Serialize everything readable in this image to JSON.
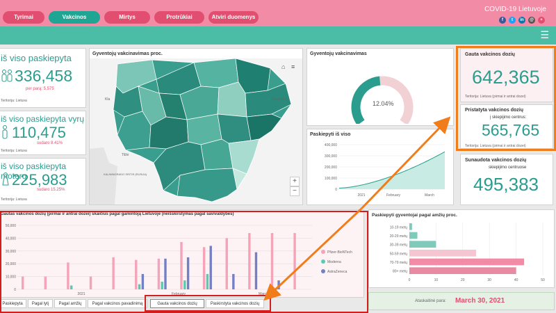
{
  "nav": {
    "items": [
      "Tyrimai",
      "Vakcinos",
      "Mirtys",
      "Protrūkiai",
      "Atviri duomenys"
    ],
    "active": "Vakcinos",
    "app_title": "COVID-19 Lietuvoje"
  },
  "colors": {
    "pink": "#f28ba6",
    "teal": "#2a9d8f",
    "green_bar": "#4bbda7",
    "red": "#d41e1e",
    "orange": "#f07d1a"
  },
  "kpi": {
    "total": {
      "title": "iš viso paskiepyta",
      "value": "336,458",
      "sub": "per parą: 5,575",
      "foot": "Teritorija: Lietuva"
    },
    "men": {
      "title": "iš viso paskiepyta vyrų",
      "value": "110,475",
      "sub": "sudaro 8.41%",
      "foot": "Teritorija: Lietuva"
    },
    "women": {
      "title": "iš viso paskiepyta moterų",
      "value": "225,983",
      "sub": "sudaro 15.25%",
      "foot": "Teritorija: Lietuva"
    }
  },
  "map": {
    "title": "Gyventojų vakcinavimas proc.",
    "labels": [
      "Daugpilis",
      "Tilžė",
      "Kla",
      "Šiauliai",
      "KALININGRADO SRITIS (RUSIJA)"
    ]
  },
  "gauge": {
    "title": "Gyventojų vakcinavimas",
    "value_text": "12.04%",
    "value": 12.04
  },
  "line": {
    "title": "Paskiepyti iš viso",
    "y_ticks": [
      "400,000",
      "300,000",
      "200,000",
      "100,000",
      "0"
    ],
    "x_ticks": [
      "2021",
      "February",
      "March"
    ]
  },
  "received": {
    "title": "Gauta vakcinos dozių",
    "value": "642,365",
    "foot": "Teritorija: Lietuva (pirmai ir antrai dozei)"
  },
  "delivered": {
    "title": "Pristatyta vakcinos dozių",
    "sub": "į skiepijimo centrus:",
    "value": "565,765",
    "foot": "Teritorija: Lietuva (pirmai ir antrai dozei)"
  },
  "used": {
    "title": "Sunaudota vakcinos dozių",
    "sub": "skiepijimo centruose",
    "value": "495,383"
  },
  "bar": {
    "title": "Gautas vakcinos dozių (pirmai ir antrai dozei) skaičius pagal gamintoją Lietuvoje (neišskirstymas pagal savivaldybes)",
    "y_ticks": [
      "50,000",
      "40,000",
      "30,000",
      "20,000",
      "10,000",
      "0"
    ],
    "x_ticks": [
      "2021",
      "February",
      "March"
    ],
    "legend": [
      "Pfizer-BioNTech",
      "Moderna",
      "AstraZeneca"
    ]
  },
  "age": {
    "title": "Paskiepyti gyventojai pagal amžių proc.",
    "categories": [
      "10-19 metų",
      "20-29 metų",
      "30-39 metų",
      "50-59 metų",
      "70-79 metų",
      "80+ metų"
    ],
    "x_ticks": [
      "0",
      "10",
      "20",
      "30",
      "40",
      "50"
    ]
  },
  "report": {
    "label": "Ataskaitinė para:",
    "date": "March 30, 2021"
  },
  "tabs": [
    "Paskiepyta",
    "Pagal lytį",
    "Pagal amžių",
    "Pagal vakcinos pavadinimą",
    "Gauta vakcinos dozių",
    "Paskirstyta vakcinos dozių"
  ],
  "chart_data": [
    {
      "type": "bar",
      "title": "Gautas vakcinos dozių (pirmai ir antrai dozei) skaičius pagal gamintoją Lietuvoje (neišskirstymas pagal savivaldybes)",
      "ylim": [
        0,
        50000
      ],
      "series": [
        {
          "name": "Pfizer-BioNTech",
          "color": "#f4a3b8",
          "values": [
            10000,
            10000,
            21000,
            10000,
            25000,
            23000,
            24000,
            37000,
            33000,
            40000,
            44000,
            44000,
            44000
          ]
        },
        {
          "name": "Moderna",
          "color": "#5cc9b1",
          "values": [
            0,
            0,
            3000,
            0,
            0,
            4000,
            6000,
            7000,
            12000,
            0,
            0,
            0,
            0
          ]
        },
        {
          "name": "AstraZeneca",
          "color": "#7480c4",
          "values": [
            0,
            0,
            0,
            0,
            0,
            12000,
            24000,
            25000,
            34000,
            12000,
            29000,
            7000,
            0
          ]
        }
      ]
    },
    {
      "type": "bar",
      "title": "Paskiepyti gyventojai pagal amžių proc.",
      "categories": [
        "10-19 metų",
        "20-29 metų",
        "30-39 metų",
        "50-59 metų",
        "70-79 metų",
        "80+ metų"
      ],
      "values": [
        1,
        3,
        10,
        25,
        43,
        40
      ],
      "xlim": [
        0,
        50
      ]
    },
    {
      "type": "line",
      "title": "Paskiepyti iš viso",
      "x": [
        "2021",
        "February",
        "March"
      ],
      "values": [
        10000,
        60000,
        336458
      ],
      "ylim": [
        0,
        400000
      ]
    }
  ]
}
